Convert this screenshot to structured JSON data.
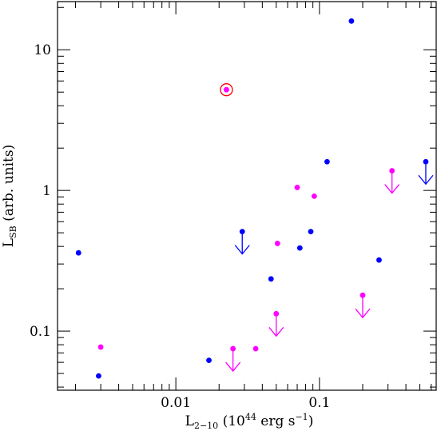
{
  "chart_data": {
    "type": "scatter",
    "x_scale": "log",
    "y_scale": "log",
    "xlim": [
      0.0015,
      0.65
    ],
    "ylim": [
      0.038,
      22
    ],
    "x_ticks": [
      {
        "value": 0.01,
        "label": "0.01"
      },
      {
        "value": 0.1,
        "label": "0.1"
      }
    ],
    "y_ticks": [
      {
        "value": 0.1,
        "label": "0.1"
      },
      {
        "value": 1,
        "label": "1"
      },
      {
        "value": 10,
        "label": "10"
      }
    ],
    "xlabel": {
      "base": "L",
      "sub": "2−10",
      "rest": " (10",
      "sup": "44",
      "tail": " erg s",
      "sup2": "−1",
      "end": ")"
    },
    "ylabel": {
      "base": "L",
      "sub": "SB",
      "rest": " (arb. units)"
    },
    "colors": {
      "blue": "#0000ff",
      "magenta": "#ff00ff",
      "highlight_ring": "#ff0000"
    },
    "series": [
      {
        "color": "blue",
        "points": [
          {
            "x": 0.0021,
            "y": 0.36
          },
          {
            "x": 0.0029,
            "y": 0.048
          },
          {
            "x": 0.017,
            "y": 0.062
          },
          {
            "x": 0.029,
            "y": 0.51,
            "upper_limit": true
          },
          {
            "x": 0.046,
            "y": 0.235
          },
          {
            "x": 0.073,
            "y": 0.39
          },
          {
            "x": 0.087,
            "y": 0.51
          },
          {
            "x": 0.113,
            "y": 1.6
          },
          {
            "x": 0.167,
            "y": 16.0
          },
          {
            "x": 0.26,
            "y": 0.32
          },
          {
            "x": 0.55,
            "y": 1.6,
            "upper_limit": true
          }
        ]
      },
      {
        "color": "magenta",
        "points": [
          {
            "x": 0.003,
            "y": 0.077
          },
          {
            "x": 0.0225,
            "y": 5.2,
            "highlighted": true
          },
          {
            "x": 0.025,
            "y": 0.075,
            "upper_limit": true
          },
          {
            "x": 0.036,
            "y": 0.075
          },
          {
            "x": 0.05,
            "y": 0.133,
            "upper_limit": true
          },
          {
            "x": 0.051,
            "y": 0.42
          },
          {
            "x": 0.07,
            "y": 1.05
          },
          {
            "x": 0.092,
            "y": 0.91
          },
          {
            "x": 0.2,
            "y": 0.18,
            "upper_limit": true
          },
          {
            "x": 0.32,
            "y": 1.38,
            "upper_limit": true
          }
        ]
      }
    ]
  }
}
